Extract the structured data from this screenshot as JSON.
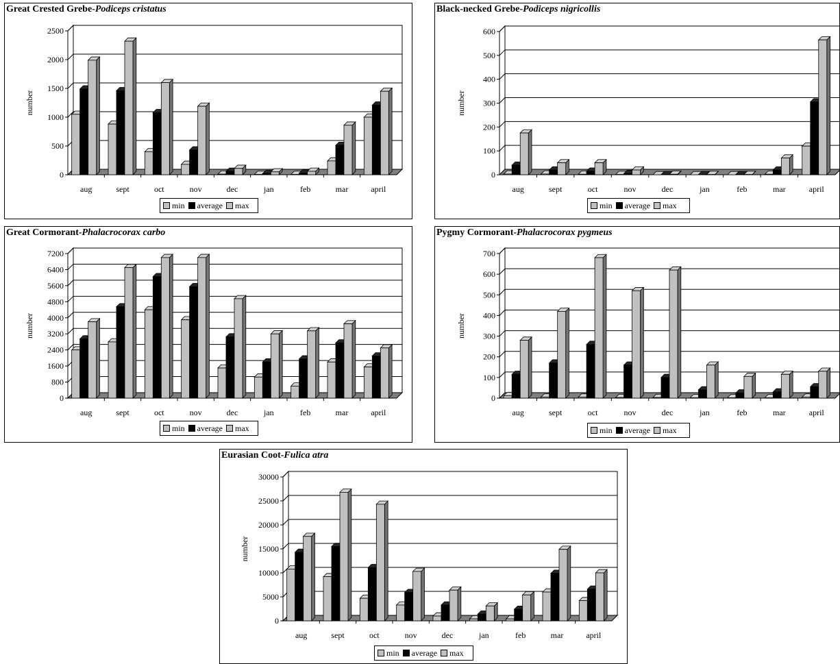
{
  "legend": [
    "min",
    "average",
    "max"
  ],
  "colors": {
    "min": "#c0c0c0",
    "average": "#000000",
    "max": "#c0c0c0",
    "floor": "#808080",
    "grid": "#000000"
  },
  "chart_data": [
    {
      "type": "bar",
      "title_common": "Great Crested Grebe-",
      "title_latin": "Podiceps cristatus",
      "ylabel": "number",
      "categories": [
        "aug",
        "sept",
        "oct",
        "nov",
        "dec",
        "jan",
        "feb",
        "mar",
        "april"
      ],
      "ylim": [
        0,
        2500
      ],
      "yticks": [
        0,
        500,
        1000,
        1500,
        2000,
        2500
      ],
      "grid": true,
      "legend_position": "bottom",
      "series": [
        {
          "name": "min",
          "values": [
            1050,
            880,
            400,
            180,
            10,
            5,
            5,
            240,
            1000
          ]
        },
        {
          "name": "average",
          "values": [
            1490,
            1460,
            1080,
            430,
            60,
            20,
            30,
            510,
            1210
          ]
        },
        {
          "name": "max",
          "values": [
            1990,
            2320,
            1600,
            1190,
            110,
            50,
            60,
            860,
            1450
          ]
        }
      ]
    },
    {
      "type": "bar",
      "title_common": "Black-necked Grebe-",
      "title_latin": "Podiceps nigricollis",
      "ylabel": "number",
      "categories": [
        "aug",
        "sept",
        "oct",
        "nov",
        "dec",
        "jan",
        "feb",
        "mar",
        "april"
      ],
      "ylim": [
        0,
        600
      ],
      "yticks": [
        0,
        100,
        200,
        300,
        400,
        500,
        600
      ],
      "grid": true,
      "legend_position": "bottom",
      "series": [
        {
          "name": "min",
          "values": [
            3,
            3,
            2,
            1,
            0,
            0,
            0,
            2,
            120
          ]
        },
        {
          "name": "average",
          "values": [
            40,
            20,
            15,
            5,
            1,
            1,
            1,
            20,
            305
          ]
        },
        {
          "name": "max",
          "values": [
            175,
            50,
            50,
            20,
            2,
            1,
            1,
            70,
            565
          ]
        }
      ]
    },
    {
      "type": "bar",
      "title_common": "Great Cormorant-",
      "title_latin": "Phalacrocorax carbo",
      "ylabel": "number",
      "categories": [
        "aug",
        "sept",
        "oct",
        "nov",
        "dec",
        "jan",
        "feb",
        "mar",
        "april"
      ],
      "ylim": [
        0,
        7200
      ],
      "yticks": [
        0,
        800,
        1600,
        2400,
        3200,
        4000,
        4800,
        5600,
        6400,
        7200
      ],
      "grid": true,
      "legend_position": "bottom",
      "series": [
        {
          "name": "min",
          "values": [
            2400,
            2800,
            4400,
            3900,
            1500,
            1050,
            600,
            1800,
            1550
          ]
        },
        {
          "name": "average",
          "values": [
            2950,
            4550,
            6050,
            5550,
            3050,
            1800,
            1950,
            2750,
            2100
          ]
        },
        {
          "name": "max",
          "values": [
            3800,
            6500,
            7000,
            7000,
            4950,
            3200,
            3350,
            3700,
            2500
          ]
        }
      ]
    },
    {
      "type": "bar",
      "title_common": "Pygmy Cormorant-",
      "title_latin": "Phalacrocorax pygmeus",
      "ylabel": "number",
      "categories": [
        "aug",
        "sept",
        "oct",
        "nov",
        "dec",
        "jan",
        "feb",
        "mar",
        "april"
      ],
      "ylim": [
        0,
        700
      ],
      "yticks": [
        0,
        100,
        200,
        300,
        400,
        500,
        600,
        700
      ],
      "grid": true,
      "legend_position": "bottom",
      "series": [
        {
          "name": "min",
          "values": [
            12,
            5,
            5,
            3,
            3,
            2,
            2,
            2,
            5
          ]
        },
        {
          "name": "average",
          "values": [
            115,
            170,
            260,
            160,
            100,
            40,
            25,
            30,
            55
          ]
        },
        {
          "name": "max",
          "values": [
            280,
            420,
            680,
            520,
            620,
            160,
            105,
            115,
            130
          ]
        }
      ]
    },
    {
      "type": "bar",
      "title_common": "Eurasian Coot-",
      "title_latin": "Fulica atra",
      "ylabel": "number",
      "categories": [
        "aug",
        "sept",
        "oct",
        "nov",
        "dec",
        "jan",
        "feb",
        "mar",
        "april"
      ],
      "ylim": [
        0,
        30000
      ],
      "yticks": [
        0,
        5000,
        10000,
        15000,
        20000,
        25000,
        30000
      ],
      "grid": true,
      "legend_position": "bottom",
      "series": [
        {
          "name": "min",
          "values": [
            10800,
            9200,
            4700,
            3300,
            1000,
            400,
            400,
            6000,
            4200
          ]
        },
        {
          "name": "average",
          "values": [
            14300,
            15500,
            11100,
            5900,
            3300,
            1400,
            2400,
            9900,
            6600
          ]
        },
        {
          "name": "max",
          "values": [
            17600,
            26800,
            24300,
            10300,
            6400,
            3100,
            5400,
            14900,
            10000
          ]
        }
      ]
    }
  ]
}
